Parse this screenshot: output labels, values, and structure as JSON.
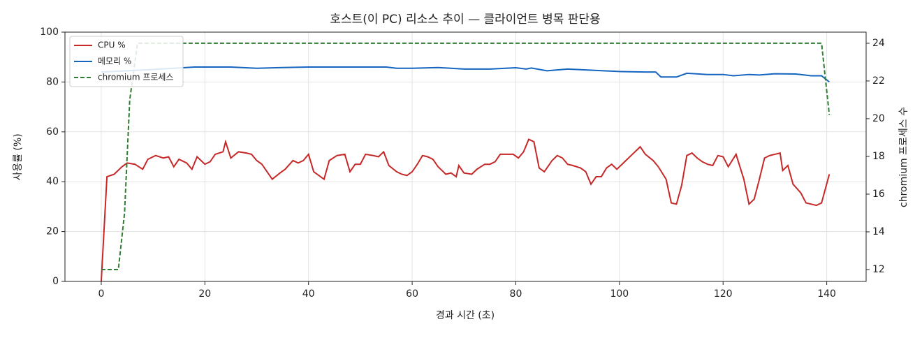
{
  "chart_data": {
    "type": "line",
    "title": "호스트(이 PC) 리소스 추이 — 클라이언트 병목 판단용",
    "xlabel": "경과 시간 (초)",
    "ylabel": "사용률 (%)",
    "y2label": "chromium 프로세스 수",
    "xlim": [
      -7,
      147.6
    ],
    "xticks": [
      0,
      20,
      40,
      60,
      80,
      100,
      120,
      140
    ],
    "ylim": [
      0,
      100
    ],
    "yticks": [
      0,
      20,
      40,
      60,
      80,
      100
    ],
    "y2lim": [
      11.37,
      24.59
    ],
    "y2ticks": [
      12,
      14,
      16,
      18,
      20,
      22,
      24
    ],
    "grid": true,
    "legend": "upper-left",
    "series": [
      {
        "name": "CPU %",
        "color": "#c62828",
        "style": "solid",
        "x": [
          0,
          1.1,
          2.5,
          4,
          5,
          6.5,
          8,
          9,
          10.5,
          12,
          13,
          14,
          15,
          16.5,
          17.5,
          18.5,
          20,
          21,
          22,
          23.5,
          24,
          25,
          26.5,
          28,
          29,
          30,
          31,
          32,
          33,
          34.5,
          35.5,
          37,
          38,
          39,
          40,
          41,
          42,
          43,
          44,
          45.5,
          47,
          48,
          49,
          50,
          51,
          52.5,
          53.5,
          54.5,
          55.5,
          57,
          58,
          59,
          60,
          61,
          62,
          63,
          64,
          65,
          66.5,
          67.5,
          68.5,
          69,
          70,
          71.5,
          72.5,
          74,
          75,
          76,
          77,
          78,
          79.5,
          80.5,
          81.5,
          82.5,
          83.5,
          84.5,
          85.5,
          87,
          88,
          89,
          90,
          91,
          92.5,
          93.5,
          94.5,
          95.5,
          96.5,
          97.5,
          98.5,
          99.5,
          101,
          102.5,
          104,
          105,
          106.5,
          107.5,
          109,
          110,
          111,
          112,
          113,
          114,
          115,
          116,
          117,
          118,
          119,
          120,
          121,
          122.5,
          124,
          125,
          126,
          127,
          128,
          129,
          130,
          131,
          131.5,
          132.5,
          133.5,
          135,
          136,
          137,
          138,
          139,
          140.5
        ],
        "values": [
          0,
          42,
          43,
          46,
          47.5,
          47,
          45,
          49,
          50.5,
          49.5,
          50,
          46,
          49,
          47.5,
          45,
          50,
          47,
          48,
          51,
          52,
          56,
          49.5,
          52,
          51.5,
          51,
          48.5,
          47,
          44,
          41,
          43.5,
          45,
          48.5,
          47.5,
          48.5,
          51,
          44,
          42.5,
          41,
          48.5,
          50.5,
          51,
          44,
          47,
          47,
          51,
          50.5,
          50,
          52,
          46.5,
          44,
          43,
          42.5,
          44,
          47,
          50.5,
          50,
          49,
          46,
          43,
          43.5,
          42,
          46.5,
          43.5,
          43,
          45,
          47,
          47,
          48,
          51,
          51,
          51,
          49.5,
          52,
          57,
          56,
          45.5,
          44,
          48.5,
          50.5,
          49.5,
          47,
          46.5,
          45.5,
          44,
          39,
          42,
          42,
          45.5,
          47,
          45,
          48,
          51,
          54,
          51,
          48.5,
          46,
          41,
          31.5,
          31,
          38.5,
          50.5,
          51.5,
          49.5,
          48,
          47,
          46.5,
          50.5,
          50,
          46,
          51,
          41,
          31,
          33,
          41,
          49.5,
          50.5,
          51,
          51.5,
          44.5,
          46.5,
          39,
          35.5,
          31.5,
          31,
          30.5,
          31.5,
          43
        ]
      },
      {
        "name": "메모리 %",
        "color": "#1565c0",
        "style": "solid",
        "x": [
          0,
          5,
          10,
          18,
          25,
          30,
          35,
          40,
          50,
          55,
          57,
          60,
          65,
          70,
          75,
          80,
          82,
          83,
          86,
          90,
          97,
          100,
          105,
          107,
          108,
          111,
          113,
          117,
          120,
          122,
          125,
          127,
          130,
          134,
          137,
          139,
          140.5
        ],
        "values": [
          84,
          84.5,
          85,
          86,
          86,
          85.5,
          85.8,
          86,
          86,
          86,
          85.5,
          85.5,
          85.8,
          85.2,
          85.2,
          85.7,
          85.2,
          85.6,
          84.5,
          85.2,
          84.5,
          84.2,
          84,
          84,
          82,
          82,
          83.5,
          83,
          83,
          82.5,
          83,
          82.8,
          83.3,
          83.2,
          82.5,
          82.5,
          80
        ]
      },
      {
        "name": "chromium 프로세스",
        "color": "#2e7d32",
        "style": "dashed",
        "axis": "y2",
        "x": [
          0,
          3.3,
          4.5,
          5.5,
          7,
          139,
          140.5
        ],
        "values": [
          12,
          12,
          15,
          21,
          24,
          24,
          20.2
        ]
      }
    ]
  }
}
